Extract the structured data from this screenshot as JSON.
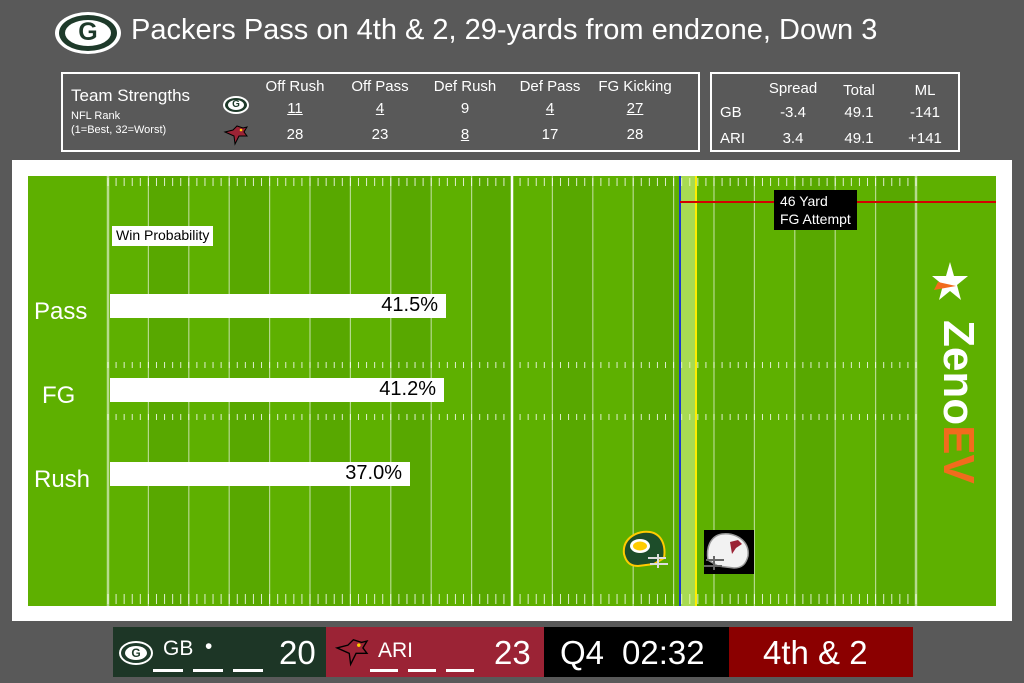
{
  "title": "Packers Pass on 4th & 2, 29-yards from endzone, Down 3",
  "logo_letter": "G",
  "strengths": {
    "heading": "Team Strengths",
    "sub1": "NFL Rank",
    "sub2": "(1=Best, 32=Worst)",
    "columns": [
      "Off Rush",
      "Off Pass",
      "Def Rush",
      "Def Pass",
      "FG Kicking"
    ],
    "gb": [
      "11",
      "4",
      "9",
      "4",
      "27"
    ],
    "ari": [
      "28",
      "23",
      "8",
      "17",
      "28"
    ]
  },
  "odds": {
    "columns": [
      "Spread",
      "Total",
      "ML"
    ],
    "rows": [
      {
        "team": "GB",
        "values": [
          "-3.4",
          "49.1",
          "-141"
        ]
      },
      {
        "team": "ARI",
        "values": [
          "3.4",
          "49.1",
          "+141"
        ]
      }
    ]
  },
  "field": {
    "win_prob_label": "Win Probability",
    "fg_attempt_line1": "46 Yard",
    "fg_attempt_line2": "FG Attempt",
    "plays": [
      {
        "label": "Pass",
        "pct": 41.5,
        "text": "41.5%"
      },
      {
        "label": "FG",
        "pct": 41.2,
        "text": "41.2%"
      },
      {
        "label": "Rush",
        "pct": 37.0,
        "text": "37.0%"
      }
    ],
    "brand_a": "Zeno",
    "brand_b": "EV"
  },
  "scoreboard": {
    "home_abbr": "GB",
    "home_score": "20",
    "away_abbr": "ARI",
    "away_score": "23",
    "quarter": "Q4",
    "clock": "02:32",
    "down_distance": "4th & 2",
    "possession_dot": "•"
  },
  "colors": {
    "field_green": "#5eb000",
    "packers_green": "#1d3626",
    "cardinals_red": "#9b2335",
    "down_red": "#8b0000",
    "brand_orange": "#f26b1d"
  }
}
